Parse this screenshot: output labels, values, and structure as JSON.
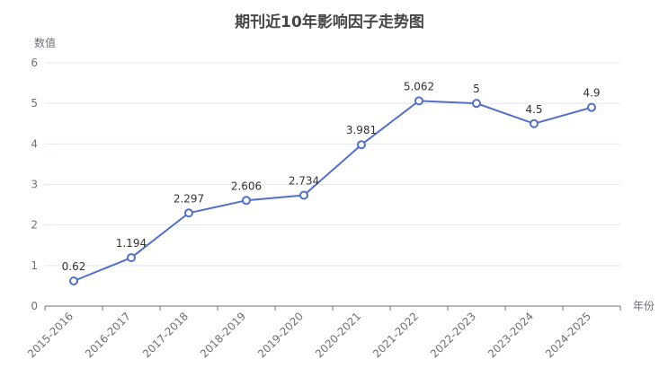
{
  "chart_data": {
    "type": "line",
    "title": "期刊近10年影响因子走势图",
    "xlabel": "年份",
    "ylabel": "数值",
    "categories": [
      "2015-2016",
      "2016-2017",
      "2017-2018",
      "2018-2019",
      "2019-2020",
      "2020-2021",
      "2021-2022",
      "2022-2023",
      "2023-2024",
      "2024-2025"
    ],
    "values": [
      0.62,
      1.194,
      2.297,
      2.606,
      2.734,
      3.981,
      5.062,
      5,
      4.5,
      4.9
    ],
    "value_labels": [
      "0.62",
      "1.194",
      "2.297",
      "2.606",
      "2.734",
      "3.981",
      "5.062",
      "5",
      "4.5",
      "4.9"
    ],
    "ylim": [
      0,
      6
    ],
    "yticks": [
      "0",
      "1",
      "2",
      "3",
      "4",
      "5",
      "6"
    ],
    "grid": true,
    "colors": {
      "line": "#5470c6",
      "grid": "#e0e6f1",
      "axis": "#6e7079"
    }
  }
}
